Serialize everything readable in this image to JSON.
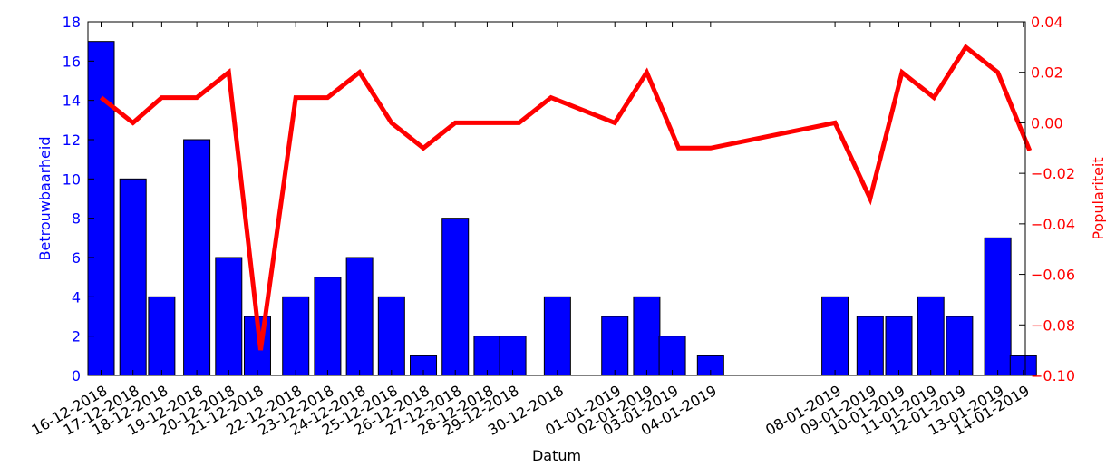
{
  "chart_data": {
    "type": "bar+line",
    "x": [
      "16-12-2018",
      "17-12-2018",
      "18-12-2018",
      "19-12-2018",
      "20-12-2018",
      "21-12-2018",
      "22-12-2018",
      "23-12-2018",
      "24-12-2018",
      "25-12-2018",
      "26-12-2018",
      "27-12-2018",
      "28-12-2018",
      "29-12-2018",
      "30-12-2018",
      "01-01-2019",
      "02-01-2019",
      "03-01-2019",
      "04-01-2019",
      "08-01-2019",
      "09-01-2019",
      "10-01-2019",
      "11-01-2019",
      "12-01-2019",
      "13-01-2019",
      "14-01-2019"
    ],
    "bar_offsets_days": [
      0,
      1,
      1.9,
      3,
      4,
      4.9,
      6.1,
      7.1,
      8.1,
      9.1,
      10.1,
      11.1,
      12.1,
      12.9,
      14.3,
      16.1,
      17.1,
      17.9,
      19.1,
      23,
      24.1,
      25,
      26,
      26.9,
      28.1,
      28.9
    ],
    "line_offsets_days": [
      0,
      1,
      1.9,
      3,
      4,
      5,
      6.1,
      7.1,
      8.1,
      9.1,
      10.1,
      11.1,
      12.1,
      13.1,
      14.1,
      16.1,
      17.1,
      18.1,
      19.1,
      23,
      24.1,
      25.1,
      26.1,
      27.1,
      28.1,
      29.1
    ],
    "bar_series": {
      "name": "Betrouwbaarheid",
      "color": "#0000ff",
      "values": [
        17,
        10,
        4,
        12,
        6,
        3,
        4,
        5,
        6,
        4,
        1,
        8,
        2,
        2,
        4,
        3,
        4,
        2,
        1,
        4,
        3,
        3,
        4,
        3,
        7,
        1
      ]
    },
    "line_series": {
      "name": "Populariteit",
      "color": "#ff0000",
      "values": [
        0.01,
        0.0,
        0.01,
        0.01,
        0.02,
        -0.09,
        0.01,
        0.01,
        0.02,
        0.0,
        -0.01,
        0.0,
        0.0,
        0.0,
        0.01,
        0.0,
        0.02,
        -0.01,
        -0.01,
        0.0,
        -0.03,
        0.02,
        0.01,
        0.03,
        0.02,
        -0.011
      ]
    },
    "xlabel": "Datum",
    "ylabel_left": "Betrouwbaarheid",
    "ylabel_right": "Populariteit",
    "ylim_left": [
      0,
      18
    ],
    "ylim_right": [
      -0.1,
      0.04
    ],
    "yticks_left": [
      "0",
      "2",
      "4",
      "6",
      "8",
      "10",
      "12",
      "14",
      "16",
      "18"
    ],
    "yticks_right": [
      "−0.10",
      "−0.08",
      "−0.06",
      "−0.04",
      "−0.02",
      "0.00",
      "0.02",
      "0.04"
    ],
    "grid": false
  }
}
